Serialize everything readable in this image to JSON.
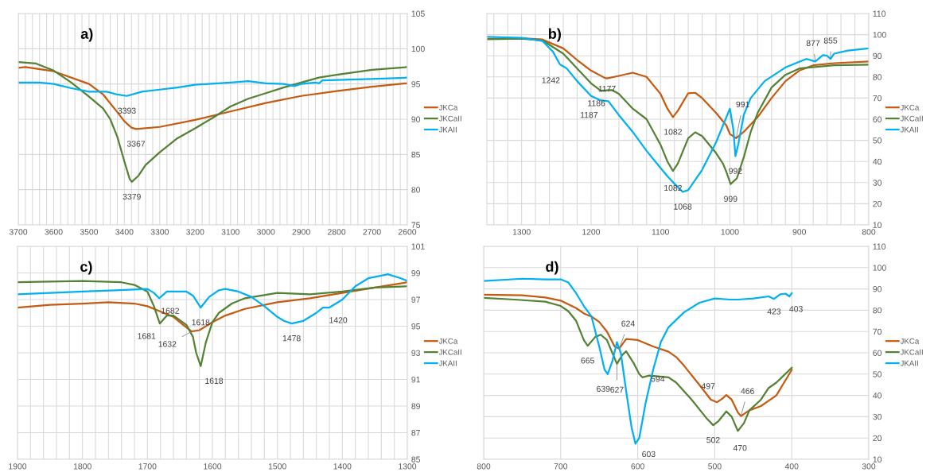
{
  "chart_data": [
    {
      "type": "line",
      "title": "a)",
      "xlim": [
        3700,
        2600
      ],
      "ylim": [
        75,
        105
      ],
      "yticks": [
        75,
        80,
        85,
        90,
        95,
        100,
        105
      ],
      "grid": true,
      "legend": "right",
      "marker": "none",
      "line_style": "solid",
      "xticks": [
        3700,
        {
          "value": 3680,
          "label": null
        },
        {
          "value": 3660,
          "label": null
        },
        {
          "value": 3640,
          "label": null
        },
        {
          "value": 3620,
          "label": null
        },
        3600,
        {
          "value": 3580,
          "label": null
        },
        {
          "value": 3560,
          "label": null
        },
        {
          "value": 3540,
          "label": null
        },
        {
          "value": 3520,
          "label": null
        },
        3500,
        {
          "value": 3480,
          "label": null
        },
        {
          "value": 3460,
          "label": null
        },
        {
          "value": 3440,
          "label": null
        },
        {
          "value": 3420,
          "label": null
        },
        3400,
        {
          "value": 3380,
          "label": null
        },
        {
          "value": 3360,
          "label": null
        },
        {
          "value": 3340,
          "label": null
        },
        {
          "value": 3320,
          "label": null
        },
        3300,
        {
          "value": 3280,
          "label": null
        },
        {
          "value": 3260,
          "label": null
        },
        {
          "value": 3240,
          "label": null
        },
        {
          "value": 3220,
          "label": null
        },
        3200,
        {
          "value": 3180,
          "label": null
        },
        {
          "value": 3160,
          "label": null
        },
        {
          "value": 3140,
          "label": null
        },
        {
          "value": 3120,
          "label": null
        },
        3100,
        {
          "value": 3080,
          "label": null
        },
        {
          "value": 3060,
          "label": null
        },
        {
          "value": 3040,
          "label": null
        },
        {
          "value": 3020,
          "label": null
        },
        3000,
        {
          "value": 2980,
          "label": null
        },
        {
          "value": 2960,
          "label": null
        },
        {
          "value": 2940,
          "label": null
        },
        {
          "value": 2920,
          "label": null
        },
        2900,
        {
          "value": 2880,
          "label": null
        },
        {
          "value": 2860,
          "label": null
        },
        {
          "value": 2840,
          "label": null
        },
        {
          "value": 2820,
          "label": null
        },
        2800,
        {
          "value": 2780,
          "label": null
        },
        {
          "value": 2760,
          "label": null
        },
        {
          "value": 2740,
          "label": null
        },
        {
          "value": 2720,
          "label": null
        },
        2700,
        {
          "value": 2680,
          "label": null
        },
        {
          "value": 2660,
          "label": null
        },
        {
          "value": 2640,
          "label": null
        },
        {
          "value": 2620,
          "label": null
        },
        2600
      ],
      "series": [
        {
          "name": "JKCa",
          "color": "#c55a11",
          "x": [
            3700,
            3680,
            3600,
            3500,
            3460,
            3420,
            3400,
            3380,
            3367,
            3300,
            3200,
            3100,
            3000,
            2900,
            2800,
            2700,
            2600
          ],
          "values": [
            97.3,
            97.4,
            96.8,
            95.0,
            93.5,
            91,
            89.7,
            88.8,
            88.6,
            88.9,
            89.9,
            91.1,
            92.3,
            93.3,
            94.0,
            94.6,
            95.1
          ]
        },
        {
          "name": "JKCaII",
          "color": "#548235",
          "x": [
            3700,
            3650,
            3600,
            3550,
            3500,
            3460,
            3440,
            3420,
            3400,
            3385,
            3379,
            3360,
            3340,
            3300,
            3250,
            3200,
            3150,
            3100,
            3050,
            3000,
            2950,
            2900,
            2850,
            2800,
            2700,
            2600
          ],
          "values": [
            98.1,
            97.9,
            96.9,
            95.2,
            93.2,
            91.5,
            90.0,
            87.5,
            84.0,
            81.5,
            81.1,
            82.0,
            83.5,
            85.3,
            87.3,
            88.7,
            90.2,
            91.8,
            92.9,
            93.7,
            94.5,
            95.2,
            95.9,
            96.3,
            97.0,
            97.4
          ]
        },
        {
          "name": "JKAII",
          "color": "#00b0f0",
          "x": [
            3700,
            3640,
            3600,
            3550,
            3500,
            3450,
            3420,
            3393,
            3350,
            3300,
            3250,
            3200,
            3100,
            3050,
            3000,
            2950,
            2920,
            2900,
            2860,
            2850,
            2840,
            2700,
            2600
          ],
          "values": [
            95.2,
            95.2,
            95.0,
            94.4,
            93.9,
            93.9,
            93.5,
            93.3,
            93.9,
            94.2,
            94.5,
            94.9,
            95.2,
            95.4,
            95.1,
            95.0,
            94.7,
            95.0,
            95.2,
            95.1,
            95.5,
            95.7,
            95.9
          ]
        }
      ],
      "annotations": [
        {
          "text": "3393",
          "x": 3393,
          "y": 93.3
        },
        {
          "text": "3367",
          "x": 3367,
          "y": 88.6
        },
        {
          "text": "3379",
          "x": 3379,
          "y": 81.1
        }
      ]
    },
    {
      "type": "line",
      "title": "b)",
      "xlim": [
        1350,
        800
      ],
      "ylim": [
        10,
        110
      ],
      "yticks": [
        10,
        20,
        30,
        40,
        50,
        60,
        70,
        80,
        90,
        100,
        110
      ],
      "grid": true,
      "legend": "right",
      "marker": "none",
      "line_style": "solid",
      "xticks": [
        {
          "value": 1340,
          "label": null
        },
        {
          "value": 1320,
          "label": null
        },
        1300,
        {
          "value": 1280,
          "label": null
        },
        {
          "value": 1260,
          "label": null
        },
        {
          "value": 1240,
          "label": null
        },
        {
          "value": 1220,
          "label": null
        },
        1200,
        {
          "value": 1180,
          "label": null
        },
        {
          "value": 1160,
          "label": null
        },
        {
          "value": 1140,
          "label": null
        },
        {
          "value": 1120,
          "label": null
        },
        1100,
        {
          "value": 1080,
          "label": null
        },
        {
          "value": 1060,
          "label": null
        },
        {
          "value": 1040,
          "label": null
        },
        {
          "value": 1020,
          "label": null
        },
        1000,
        {
          "value": 980,
          "label": null
        },
        {
          "value": 960,
          "label": null
        },
        {
          "value": 940,
          "label": null
        },
        {
          "value": 920,
          "label": null
        },
        900,
        {
          "value": 880,
          "label": null
        },
        {
          "value": 860,
          "label": null
        },
        {
          "value": 840,
          "label": null
        },
        {
          "value": 820,
          "label": null
        },
        800
      ],
      "series": [
        {
          "name": "JKCa",
          "color": "#c55a11",
          "x": [
            1350,
            1300,
            1270,
            1240,
            1220,
            1200,
            1180,
            1177,
            1160,
            1140,
            1120,
            1100,
            1090,
            1082,
            1075,
            1060,
            1050,
            1040,
            1020,
            1005,
            1000,
            991,
            980,
            960,
            940,
            920,
            900,
            880,
            850,
            800
          ],
          "values": [
            98,
            98.3,
            97.7,
            93.5,
            88,
            83,
            79.5,
            79.3,
            80.5,
            82,
            80,
            72,
            65,
            61,
            64,
            72.3,
            72.5,
            70,
            63,
            57,
            53,
            51,
            54,
            61,
            70,
            78,
            83,
            85.5,
            86.5,
            87.3
          ]
        },
        {
          "name": "JKCaII",
          "color": "#548235",
          "x": [
            1350,
            1300,
            1270,
            1240,
            1220,
            1200,
            1186,
            1170,
            1160,
            1140,
            1120,
            1100,
            1090,
            1082,
            1075,
            1060,
            1050,
            1040,
            1020,
            1010,
            1005,
            999,
            990,
            980,
            970,
            960,
            940,
            920,
            900,
            850,
            800
          ],
          "values": [
            97.8,
            98.1,
            97.3,
            91,
            84,
            77,
            73.5,
            73.8,
            72,
            65,
            60,
            48,
            40,
            35.5,
            39,
            51,
            53.8,
            52,
            44,
            39,
            35,
            29.3,
            32,
            42,
            54,
            63,
            75,
            81,
            84,
            85.5,
            85.8
          ]
        },
        {
          "name": "JKAII",
          "color": "#00b0f0",
          "x": [
            1350,
            1300,
            1270,
            1255,
            1245,
            1242,
            1235,
            1220,
            1200,
            1187,
            1175,
            1160,
            1140,
            1120,
            1100,
            1090,
            1080,
            1068,
            1060,
            1040,
            1020,
            1010,
            1000,
            995,
            992,
            988,
            980,
            970,
            950,
            920,
            890,
            877,
            866,
            860,
            855,
            850,
            830,
            800
          ],
          "values": [
            99,
            98.5,
            97,
            92,
            86,
            85.4,
            84,
            78,
            71,
            69,
            68.5,
            62,
            54,
            45,
            37,
            33,
            29.5,
            25.6,
            26.5,
            36,
            49,
            57,
            65,
            55,
            42.5,
            48,
            62,
            70,
            78,
            84.5,
            88.5,
            87.3,
            90.3,
            90,
            88.5,
            91,
            92.5,
            93.5
          ]
        }
      ],
      "annotations": [
        {
          "text": "1242",
          "x": 1242,
          "y": 85.4
        },
        {
          "text": "1177",
          "x": 1177,
          "y": 79.3
        },
        {
          "text": "1186",
          "x": 1186,
          "y": 73.5
        },
        {
          "text": "1187",
          "x": 1187,
          "y": 69
        },
        {
          "text": "1082",
          "x": 1082,
          "y": 61
        },
        {
          "text": "1082",
          "x": 1082,
          "y": 35.5
        },
        {
          "text": "1068",
          "x": 1068,
          "y": 25.6
        },
        {
          "text": "999",
          "x": 999,
          "y": 29.3
        },
        {
          "text": "992",
          "x": 992,
          "y": 42.5
        },
        {
          "text": "991",
          "x": 991,
          "y": 51
        },
        {
          "text": "877",
          "x": 877,
          "y": 87.3
        },
        {
          "text": "855",
          "x": 855,
          "y": 88.5
        }
      ]
    },
    {
      "type": "line",
      "title": "c)",
      "xlim": [
        1900,
        1300
      ],
      "ylim": [
        85,
        101
      ],
      "yticks": [
        85,
        87,
        89,
        91,
        93,
        95,
        97,
        99,
        101
      ],
      "grid": true,
      "legend": "right",
      "marker": "none",
      "line_style": "solid",
      "xticks": [
        1900,
        {
          "value": 1880,
          "label": null
        },
        {
          "value": 1860,
          "label": null
        },
        {
          "value": 1840,
          "label": null
        },
        {
          "value": 1820,
          "label": null
        },
        1800,
        {
          "value": 1780,
          "label": null
        },
        {
          "value": 1760,
          "label": null
        },
        {
          "value": 1740,
          "label": null
        },
        {
          "value": 1720,
          "label": null
        },
        1700,
        {
          "value": 1680,
          "label": null
        },
        {
          "value": 1660,
          "label": null
        },
        {
          "value": 1640,
          "label": null
        },
        {
          "value": 1620,
          "label": null
        },
        1600,
        {
          "value": 1580,
          "label": null
        },
        {
          "value": 1560,
          "label": null
        },
        {
          "value": 1540,
          "label": null
        },
        {
          "value": 1520,
          "label": null
        },
        1500,
        {
          "value": 1480,
          "label": null
        },
        {
          "value": 1460,
          "label": null
        },
        {
          "value": 1440,
          "label": null
        },
        {
          "value": 1420,
          "label": null
        },
        1400,
        {
          "value": 1380,
          "label": null
        },
        {
          "value": 1360,
          "label": null
        },
        {
          "value": 1340,
          "label": null
        },
        {
          "value": 1320,
          "label": null
        },
        1300
      ],
      "series": [
        {
          "name": "JKCa",
          "color": "#c55a11",
          "x": [
            1900,
            1850,
            1800,
            1760,
            1720,
            1700,
            1680,
            1660,
            1645,
            1632,
            1620,
            1600,
            1580,
            1550,
            1500,
            1450,
            1400,
            1350,
            1300
          ],
          "values": [
            96.4,
            96.6,
            96.7,
            96.8,
            96.7,
            96.5,
            96.1,
            95.7,
            95.1,
            94.6,
            94.7,
            95.3,
            95.8,
            96.3,
            96.8,
            97.1,
            97.5,
            97.9,
            98.3
          ]
        },
        {
          "name": "JKCaII",
          "color": "#548235",
          "x": [
            1900,
            1800,
            1740,
            1720,
            1700,
            1690,
            1681,
            1670,
            1660,
            1640,
            1630,
            1625,
            1618,
            1610,
            1600,
            1590,
            1570,
            1550,
            1500,
            1450,
            1400,
            1350,
            1300
          ],
          "values": [
            98.3,
            98.4,
            98.3,
            98.1,
            97.6,
            96.5,
            95.2,
            95.8,
            95.8,
            95.1,
            94.2,
            93.0,
            92.0,
            93.8,
            95.3,
            96.0,
            96.7,
            97.1,
            97.5,
            97.4,
            97.6,
            97.9,
            98.0
          ]
        },
        {
          "name": "JKAII",
          "color": "#00b0f0",
          "x": [
            1900,
            1850,
            1800,
            1750,
            1700,
            1690,
            1682,
            1670,
            1640,
            1630,
            1618,
            1605,
            1590,
            1580,
            1560,
            1540,
            1520,
            1500,
            1490,
            1478,
            1460,
            1440,
            1430,
            1420,
            1400,
            1380,
            1360,
            1340,
            1330,
            1310,
            1300
          ],
          "values": [
            97.4,
            97.5,
            97.6,
            97.7,
            97.8,
            97.5,
            97.1,
            97.6,
            97.6,
            97.3,
            96.4,
            97.2,
            97.7,
            97.8,
            97.6,
            97.2,
            96.5,
            95.7,
            95.4,
            95.2,
            95.4,
            96.0,
            96.4,
            96.4,
            97.0,
            98.0,
            98.6,
            98.8,
            98.9,
            98.6,
            98.4
          ]
        }
      ],
      "annotations": [
        {
          "text": "1682",
          "x": 1682,
          "y": 97.1
        },
        {
          "text": "1681",
          "x": 1681,
          "y": 95.2
        },
        {
          "text": "1632",
          "x": 1632,
          "y": 94.6
        },
        {
          "text": "1618",
          "x": 1618,
          "y": 96.4
        },
        {
          "text": "1618",
          "x": 1618,
          "y": 92.0
        },
        {
          "text": "1478",
          "x": 1478,
          "y": 95.2
        },
        {
          "text": "1420",
          "x": 1420,
          "y": 96.4
        }
      ]
    },
    {
      "type": "line",
      "title": "d)",
      "xlim": [
        800,
        300
      ],
      "xticks": [
        800,
        700,
        600,
        500,
        400,
        300
      ],
      "ylim": [
        10,
        110
      ],
      "yticks": [
        10,
        20,
        30,
        40,
        50,
        60,
        70,
        80,
        90,
        100,
        110
      ],
      "grid": true,
      "legend": "right",
      "marker": "none",
      "line_style": "solid",
      "series": [
        {
          "name": "JKCa",
          "color": "#c55a11",
          "x": [
            800,
            750,
            720,
            700,
            680,
            670,
            660,
            650,
            640,
            630,
            624,
            615,
            600,
            580,
            560,
            550,
            540,
            520,
            505,
            497,
            490,
            485,
            478,
            470,
            466,
            455,
            440,
            420,
            410,
            400
          ],
          "values": [
            87.3,
            87,
            86,
            84.5,
            81,
            78.5,
            77,
            74.5,
            70,
            63,
            62,
            66.5,
            66,
            63,
            60.5,
            58,
            54,
            45,
            38,
            36.8,
            38.5,
            40.2,
            38,
            32,
            30.3,
            33,
            35,
            40,
            46,
            52
          ]
        },
        {
          "name": "JKCaII",
          "color": "#548235",
          "x": [
            800,
            760,
            720,
            700,
            690,
            680,
            670,
            665,
            655,
            648,
            640,
            627,
            620,
            615,
            605,
            598,
            594,
            585,
            560,
            550,
            530,
            510,
            502,
            495,
            485,
            478,
            470,
            462,
            455,
            440,
            430,
            420,
            410,
            400
          ],
          "values": [
            85.8,
            85,
            84,
            82,
            79.5,
            75,
            66,
            63.3,
            67.5,
            68.5,
            66,
            54.8,
            59,
            60.7,
            55,
            50,
            48.5,
            49.3,
            48.5,
            46,
            38,
            29,
            26,
            28,
            32.5,
            30,
            23.3,
            27,
            33,
            38,
            43.5,
            46,
            49.5,
            53
          ]
        },
        {
          "name": "JKAII",
          "color": "#00b0f0",
          "x": [
            800,
            750,
            720,
            700,
            690,
            680,
            670,
            660,
            650,
            643,
            639,
            633,
            627,
            622,
            615,
            608,
            603,
            598,
            590,
            580,
            570,
            560,
            540,
            520,
            500,
            480,
            470,
            450,
            430,
            423,
            415,
            408,
            403,
            400
          ],
          "values": [
            93.7,
            94.8,
            94.5,
            94.5,
            93,
            88,
            82,
            77,
            63,
            52,
            50,
            56,
            65,
            60,
            42,
            25,
            17.3,
            20,
            36,
            52,
            65,
            72,
            79,
            83.5,
            85.5,
            85,
            85,
            85.5,
            86.5,
            85.3,
            87.5,
            87.8,
            86.5,
            88
          ]
        }
      ],
      "annotations": [
        {
          "text": "665",
          "x": 665,
          "y": 63.3
        },
        {
          "text": "639",
          "x": 639,
          "y": 50
        },
        {
          "text": "627",
          "x": 627,
          "y": 54.8
        },
        {
          "text": "624",
          "x": 624,
          "y": 62
        },
        {
          "text": "594",
          "x": 594,
          "y": 48.5
        },
        {
          "text": "603",
          "x": 603,
          "y": 17.3
        },
        {
          "text": "497",
          "x": 497,
          "y": 36.8
        },
        {
          "text": "502",
          "x": 502,
          "y": 26
        },
        {
          "text": "470",
          "x": 470,
          "y": 23.3
        },
        {
          "text": "466",
          "x": 466,
          "y": 30.3
        },
        {
          "text": "423",
          "x": 423,
          "y": 85.3
        },
        {
          "text": "403",
          "x": 403,
          "y": 86.5
        }
      ]
    }
  ]
}
